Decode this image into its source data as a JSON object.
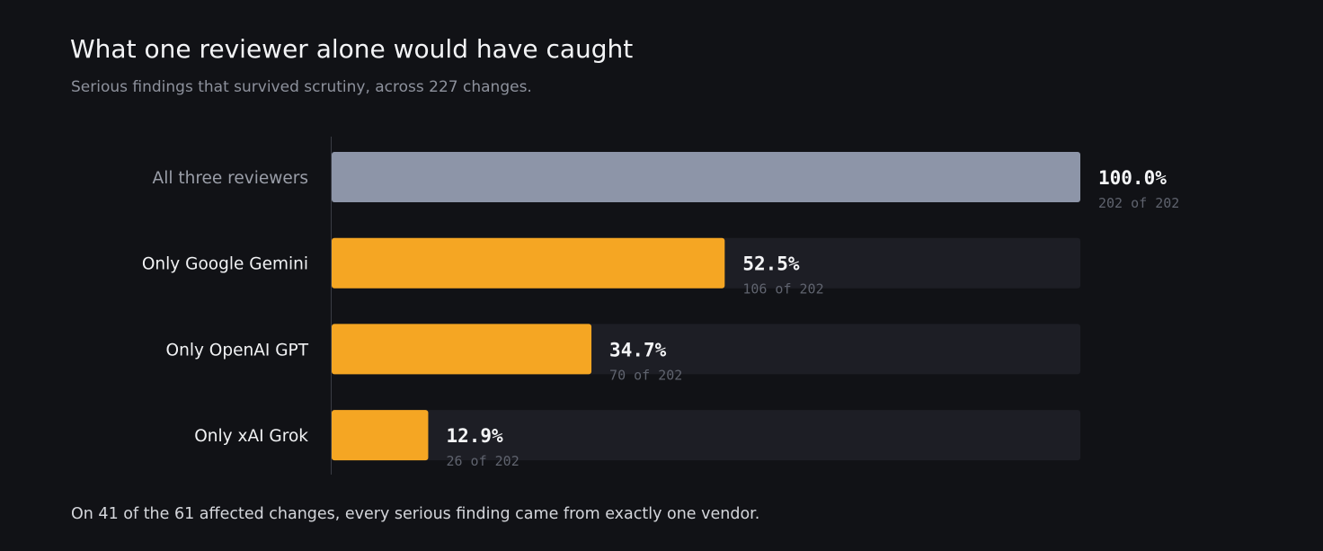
{
  "title": "What one reviewer alone would have caught",
  "subtitle": "Serious findings that survived scrutiny, across 227 changes.",
  "footnote": "On 41 of the 61 affected changes, every serious finding came from exactly one vendor.",
  "chart_data": {
    "type": "bar",
    "orientation": "horizontal",
    "categories": [
      "All three reviewers",
      "Only Google Gemini",
      "Only OpenAI GPT",
      "Only xAI Grok"
    ],
    "values": [
      100.0,
      52.5,
      34.7,
      12.9
    ],
    "value_labels": [
      "100.0%",
      "52.5%",
      "34.7%",
      "12.9%"
    ],
    "count_labels": [
      "202 of 202",
      "106 of 202",
      "70 of 202",
      "26 of 202"
    ],
    "xlim": [
      0,
      100
    ],
    "grid": false,
    "legend": "none"
  },
  "colors": {
    "background": "#111216",
    "track": "#1d1e25",
    "baseline_bar": "#8d95a8",
    "highlight_bar": "#f5a623",
    "axis": "#3a3c44",
    "baseline_label": "#9a9ea8",
    "category_label": "#f1f2f4"
  }
}
